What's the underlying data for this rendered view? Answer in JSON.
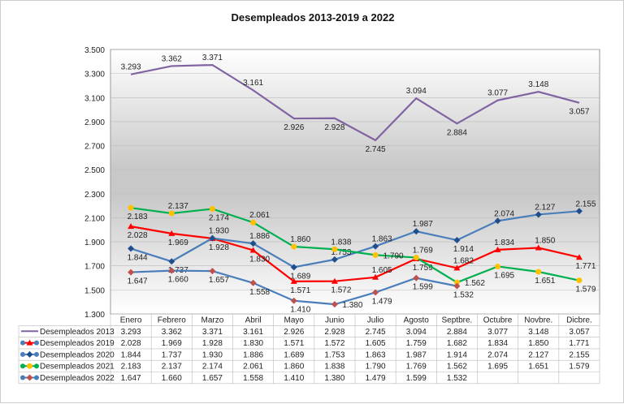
{
  "chart_data": {
    "type": "line",
    "title": "Desempleados 2013-2019 a 2022",
    "categories": [
      "Enero",
      "Febrero",
      "Marzo",
      "Abril",
      "Mayo",
      "Junio",
      "Julio",
      "Agosto",
      "Septbre.",
      "Octubre",
      "Novbre.",
      "Dicbre."
    ],
    "ylim": [
      1300,
      3500
    ],
    "yticks": [
      "1.300",
      "1.500",
      "1.700",
      "1.900",
      "2.100",
      "2.300",
      "2.500",
      "2.700",
      "2.900",
      "3.100",
      "3.300",
      "3.500"
    ],
    "legend": "bottom data table",
    "series": [
      {
        "name": "Desempleados 2013",
        "color": "#8064a2",
        "marker": "none",
        "values": [
          3293,
          3362,
          3371,
          3161,
          2926,
          2928,
          2745,
          3094,
          2884,
          3077,
          3148,
          3057
        ],
        "labels": [
          "3.293",
          "3.362",
          "3.371",
          "3.161",
          "2.926",
          "2.928",
          "2.745",
          "3.094",
          "2.884",
          "3.077",
          "3.148",
          "3.057"
        ]
      },
      {
        "name": "Desempleados 2019",
        "color": "#ff0000",
        "marker": "triangle",
        "markerColor": "#ff0000",
        "values": [
          2028,
          1969,
          1928,
          1830,
          1571,
          1572,
          1605,
          1759,
          1682,
          1834,
          1850,
          1771
        ],
        "labels": [
          "2.028",
          "1.969",
          "1.928",
          "1.830",
          "1.571",
          "1.572",
          "1.605",
          "1.759",
          "1.682",
          "1.834",
          "1.850",
          "1.771"
        ]
      },
      {
        "name": "Desempleados 2020",
        "color": "#4a7ebb",
        "marker": "diamond",
        "markerColor": "#1f4e8c",
        "values": [
          1844,
          1737,
          1930,
          1886,
          1689,
          1753,
          1863,
          1987,
          1914,
          2074,
          2127,
          2155
        ],
        "labels": [
          "1.844",
          "1.737",
          "1.930",
          "1.886",
          "1.689",
          "1.753",
          "1.863",
          "1.987",
          "1.914",
          "2.074",
          "2.127",
          "2.155"
        ]
      },
      {
        "name": "Desempleados 2021",
        "color": "#00b050",
        "marker": "circle",
        "markerColor": "#ffc000",
        "values": [
          2183,
          2137,
          2174,
          2061,
          1860,
          1838,
          1790,
          1769,
          1562,
          1695,
          1651,
          1579
        ],
        "labels": [
          "2.183",
          "2.137",
          "2.174",
          "2.061",
          "1.860",
          "1.838",
          "1.790",
          "1.769",
          "1.562",
          "1.695",
          "1.651",
          "1.579"
        ]
      },
      {
        "name": "Desempleados 2022",
        "color": "#4a7ebb",
        "marker": "diamond",
        "markerColor": "#c0504d",
        "values": [
          1647,
          1660,
          1657,
          1558,
          1410,
          1380,
          1479,
          1599,
          1532,
          null,
          null,
          null
        ],
        "labels": [
          "1.647",
          "1.660",
          "1.657",
          "1.558",
          "1.410",
          "1.380",
          "1.479",
          "1.599",
          "1.532",
          "",
          "",
          ""
        ]
      }
    ]
  }
}
